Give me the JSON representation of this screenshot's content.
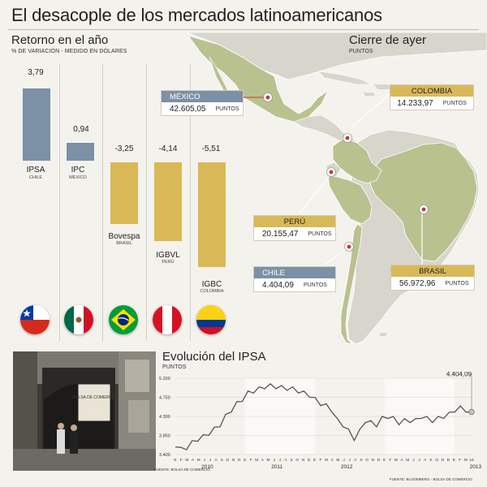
{
  "title": "El desacople de los mercados latinoamericanos",
  "returns": {
    "heading": "Retorno en el año",
    "subheading": "% DE VARIACIÓN - MEDIDO EN DÓLARES",
    "bars": [
      {
        "index": "IPSA",
        "country": "CHILE",
        "value": "3,79",
        "num": 3.79,
        "color": "#7c90a6"
      },
      {
        "index": "IPC",
        "country": "MÉXICO",
        "value": "0,94",
        "num": 0.94,
        "color": "#7c90a6"
      },
      {
        "index": "Bovespa",
        "country": "BRASIL",
        "value": "-3,25",
        "num": -3.25,
        "color": "#d9b957"
      },
      {
        "index": "IGBVL",
        "country": "PERÚ",
        "value": "-4,14",
        "num": -4.14,
        "color": "#d9b957"
      },
      {
        "index": "IGBC",
        "country": "COLOMBIA",
        "value": "-5,51",
        "num": -5.51,
        "color": "#d9b957"
      }
    ]
  },
  "close": {
    "heading": "Cierre de ayer",
    "unit_caption": "PUNTOS",
    "unit": "PUNTOS",
    "boxes": [
      {
        "name": "MÉXICO",
        "value": "42.605,05",
        "style": "blue"
      },
      {
        "name": "COLOMBIA",
        "value": "14.233,97",
        "style": "gold"
      },
      {
        "name": "PERÚ",
        "value": "20.155,47",
        "style": "gold"
      },
      {
        "name": "CHILE",
        "value": "4.404,09",
        "style": "blue"
      },
      {
        "name": "BRASIL",
        "value": "56.972,96",
        "style": "gold"
      }
    ]
  },
  "colors": {
    "blue": "#7c90a6",
    "gold": "#d9b957",
    "map_land": "#b9c28f",
    "map_other": "#d8d5cc",
    "water": "#f4f2ed"
  },
  "photo_source": "FUENTE: BOLSA DE COMERCIO",
  "photo_signage": "BOLSA DE COMERCIO",
  "chart_source": "FUENTE: BLOOMBERG - BOLSA DE COMERCIO",
  "chart_data": {
    "type": "line",
    "title": "Evolución del IPSA",
    "ylabel": "PUNTOS",
    "ylim": [
      3400,
      5200
    ],
    "yticks": [
      "5.200",
      "4.750",
      "4.300",
      "3.850",
      "3.400"
    ],
    "ytick_values": [
      5200,
      4750,
      4300,
      3850,
      3400
    ],
    "month_labels": [
      "E",
      "F",
      "M",
      "A",
      "M",
      "J",
      "J",
      "A",
      "S",
      "O",
      "N",
      "D",
      "E",
      "F",
      "M",
      "A",
      "M",
      "J",
      "J",
      "A",
      "S",
      "O",
      "N",
      "D",
      "E",
      "F",
      "M",
      "A",
      "M",
      "J",
      "J",
      "A",
      "S",
      "O",
      "N",
      "D",
      "E",
      "F",
      "M",
      "A",
      "M",
      "J",
      "J",
      "A",
      "S",
      "O",
      "N",
      "D",
      "E",
      "F",
      "M",
      "16"
    ],
    "years": [
      "2010",
      "2011",
      "2012",
      "2013"
    ],
    "last_value_label": "4.404,09",
    "series": [
      {
        "name": "IPSA",
        "values": [
          3580,
          3520,
          3560,
          3680,
          3760,
          3820,
          3900,
          4000,
          4100,
          4300,
          4450,
          4600,
          4700,
          4850,
          4900,
          4950,
          5000,
          5020,
          5000,
          4980,
          4960,
          4950,
          4900,
          4850,
          4800,
          4700,
          4600,
          4550,
          4450,
          4200,
          4100,
          3950,
          3780,
          3950,
          4200,
          4150,
          4100,
          4250,
          4300,
          4250,
          4150,
          4200,
          4200,
          4200,
          4300,
          4250,
          4200,
          4250,
          4300,
          4350,
          4450,
          4500,
          4450,
          4404
        ]
      }
    ]
  }
}
